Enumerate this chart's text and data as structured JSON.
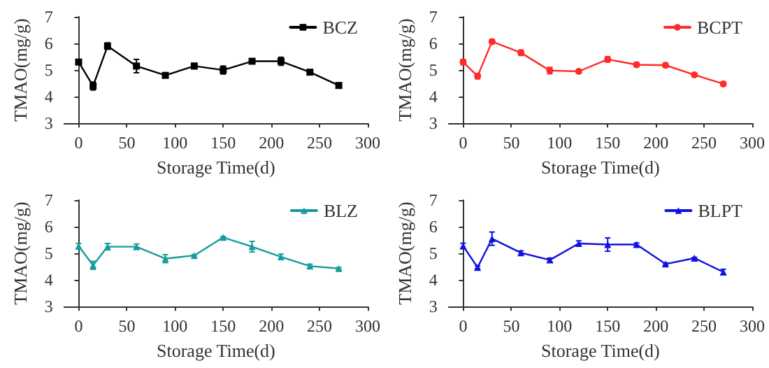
{
  "chart_data": [
    {
      "type": "line",
      "xlabel": "Storage Time(d)",
      "ylabel": "TMAO(mg/g)",
      "x": [
        0,
        15,
        30,
        60,
        90,
        120,
        150,
        180,
        210,
        240,
        270
      ],
      "xlim": [
        -15,
        300
      ],
      "xticks": [
        0,
        50,
        100,
        150,
        200,
        250,
        300
      ],
      "ylim": [
        3,
        7
      ],
      "yticks": [
        3,
        4,
        5,
        6,
        7
      ],
      "legend": "top right",
      "grid": false,
      "marker": "square",
      "line_style": "solid",
      "series": [
        {
          "name": "BCZ",
          "color": "#000000",
          "values": [
            5.3,
            4.4,
            5.9,
            5.15,
            4.8,
            5.15,
            5.0,
            5.33,
            5.33,
            4.92,
            4.42
          ],
          "errors": [
            0.08,
            0.15,
            0.12,
            0.25,
            0.05,
            0.1,
            0.15,
            0.05,
            0.15,
            0.03,
            0.08
          ]
        }
      ]
    },
    {
      "type": "line",
      "xlabel": "Storage Time(d)",
      "ylabel": "TMAO(mg/g)",
      "x": [
        0,
        15,
        30,
        60,
        90,
        120,
        150,
        180,
        210,
        240,
        270
      ],
      "xlim": [
        -15,
        300
      ],
      "xticks": [
        0,
        50,
        100,
        150,
        200,
        250,
        300
      ],
      "ylim": [
        3,
        7
      ],
      "yticks": [
        3,
        4,
        5,
        6,
        7
      ],
      "legend": "top right",
      "grid": false,
      "marker": "circle",
      "line_style": "solid",
      "series": [
        {
          "name": "BCPT",
          "color": "#ff2a2a",
          "values": [
            5.3,
            4.77,
            6.07,
            5.65,
            4.98,
            4.95,
            5.4,
            5.2,
            5.18,
            4.82,
            4.48
          ],
          "errors": [
            0.1,
            0.1,
            0.08,
            0.1,
            0.12,
            0.06,
            0.1,
            0.08,
            0.08,
            0.04,
            0.07
          ]
        }
      ]
    },
    {
      "type": "line",
      "xlabel": "Storage Time(d)",
      "ylabel": "TMAO(mg/g)",
      "x": [
        0,
        15,
        30,
        60,
        90,
        120,
        150,
        180,
        210,
        240,
        270
      ],
      "xlim": [
        -15,
        300
      ],
      "xticks": [
        0,
        50,
        100,
        150,
        200,
        250,
        300
      ],
      "ylim": [
        3,
        7
      ],
      "yticks": [
        3,
        4,
        5,
        6,
        7
      ],
      "legend": "top right",
      "grid": false,
      "marker": "triangle",
      "line_style": "solid",
      "series": [
        {
          "name": "BLZ",
          "color": "#169c9c",
          "values": [
            5.27,
            4.55,
            5.25,
            5.25,
            4.8,
            4.92,
            5.6,
            5.25,
            4.87,
            4.52,
            4.43
          ],
          "errors": [
            0.1,
            0.15,
            0.12,
            0.1,
            0.15,
            0.03,
            0.03,
            0.2,
            0.1,
            0.07,
            0.04
          ]
        }
      ]
    },
    {
      "type": "line",
      "xlabel": "Storage Time(d)",
      "ylabel": "TMAO(mg/g)",
      "x": [
        0,
        15,
        30,
        60,
        90,
        120,
        150,
        180,
        210,
        240,
        270
      ],
      "xlim": [
        -15,
        300
      ],
      "xticks": [
        0,
        50,
        100,
        150,
        200,
        250,
        300
      ],
      "ylim": [
        3,
        7
      ],
      "yticks": [
        3,
        4,
        5,
        6,
        7
      ],
      "legend": "top right",
      "grid": false,
      "marker": "triangle",
      "line_style": "solid",
      "series": [
        {
          "name": "BLPT",
          "color": "#1010e0",
          "values": [
            5.28,
            4.47,
            5.55,
            5.02,
            4.75,
            5.37,
            5.33,
            5.33,
            4.6,
            4.82,
            4.3
          ],
          "errors": [
            0.1,
            0.05,
            0.25,
            0.07,
            0.07,
            0.1,
            0.25,
            0.06,
            0.04,
            0.03,
            0.1
          ]
        }
      ]
    }
  ]
}
